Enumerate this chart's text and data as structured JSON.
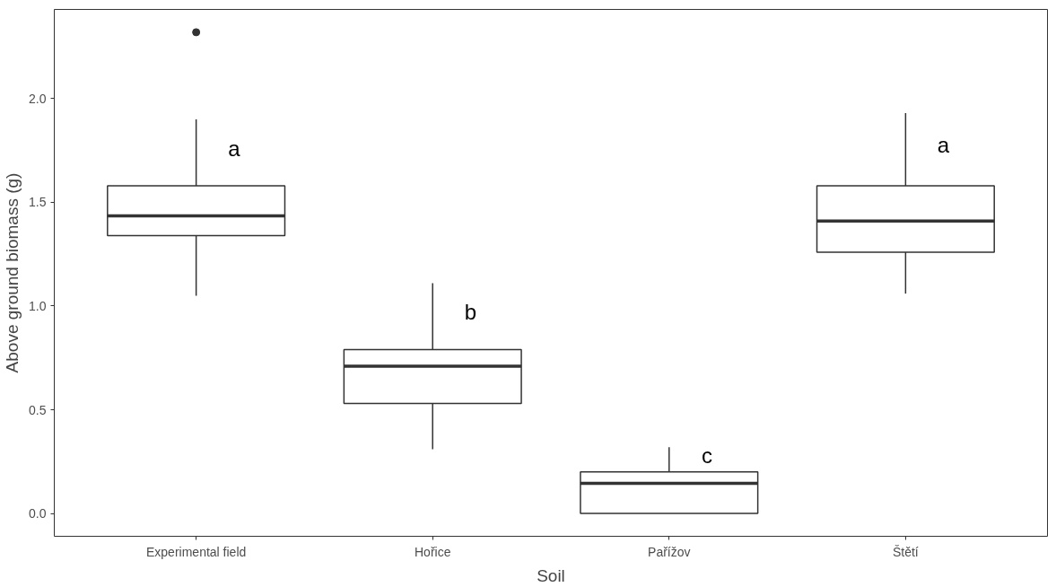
{
  "chart_data": {
    "type": "box",
    "xlabel": "Soil",
    "ylabel": "Above ground biomass (g)",
    "categories": [
      "Experimental field",
      "Hořice",
      "Pařížov",
      "Štětí"
    ],
    "boxes": [
      {
        "low": 1.05,
        "q1": 1.34,
        "median": 1.435,
        "q3": 1.58,
        "high": 1.9,
        "outliers": [
          2.32
        ]
      },
      {
        "low": 0.31,
        "q1": 0.53,
        "median": 0.71,
        "q3": 0.79,
        "high": 1.11
      },
      {
        "low": 0.0,
        "q1": 0.0,
        "median": 0.145,
        "q3": 0.2,
        "high": 0.32
      },
      {
        "low": 1.06,
        "q1": 1.26,
        "median": 1.41,
        "q3": 1.58,
        "high": 1.93
      }
    ],
    "ylim": [
      -0.11,
      2.43
    ],
    "yticks": [
      {
        "value": 0,
        "label": "0.0"
      },
      {
        "value": 0.5,
        "label": "0.5"
      },
      {
        "value": 1,
        "label": "1.0"
      },
      {
        "value": 1.5,
        "label": "1.5"
      },
      {
        "value": 2,
        "label": "2.0"
      }
    ],
    "grid": false,
    "annotations": [
      "a",
      "b",
      "c",
      "a"
    ]
  }
}
